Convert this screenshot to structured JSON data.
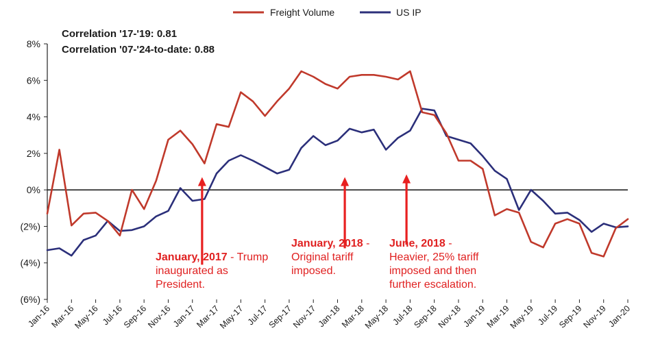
{
  "chart_data": {
    "type": "line",
    "title": "",
    "xlabel": "",
    "ylabel": "",
    "ylim": [
      -6,
      8
    ],
    "yticks": [
      8,
      6,
      4,
      2,
      0,
      -2,
      -4,
      -6
    ],
    "ytick_labels": [
      "8%",
      "6%",
      "4%",
      "2%",
      "0%",
      "(2%)",
      "(4%)",
      "(6%)"
    ],
    "x_tick_labels": [
      "Jan-16",
      "Mar-16",
      "May-16",
      "Jul-16",
      "Sep-16",
      "Nov-16",
      "Jan-17",
      "Mar-17",
      "May-17",
      "Jul-17",
      "Sep-17",
      "Nov-17",
      "Jan-18",
      "Mar-18",
      "May-18",
      "Jul-18",
      "Sep-18",
      "Nov-18",
      "Jan-19",
      "Mar-19",
      "May-19",
      "Jul-19",
      "Sep-19",
      "Nov-19",
      "Jan-20"
    ],
    "series": [
      {
        "name": "Freight Volume",
        "color": "#c0392b",
        "values": [
          -1.3,
          2.2,
          -1.95,
          -1.3,
          -1.25,
          -1.7,
          -2.5,
          0.0,
          -1.05,
          0.5,
          2.75,
          3.25,
          2.5,
          1.45,
          3.6,
          3.45,
          5.35,
          4.85,
          4.05,
          4.85,
          5.55,
          6.5,
          6.2,
          5.8,
          5.55,
          6.2,
          6.3,
          6.3,
          6.2,
          6.05,
          6.5,
          4.25,
          4.1,
          3.1,
          1.6,
          1.6,
          1.15,
          -1.4,
          -1.05,
          -1.25,
          -2.85,
          -3.15,
          -1.85,
          -1.6,
          -1.85,
          -3.45,
          -3.65,
          -2.1,
          -1.6
        ]
      },
      {
        "name": "US IP",
        "color": "#2b2f7a",
        "values": [
          -3.3,
          -3.2,
          -3.6,
          -2.75,
          -2.5,
          -1.7,
          -2.25,
          -2.2,
          -2.0,
          -1.45,
          -1.15,
          0.1,
          -0.6,
          -0.5,
          0.9,
          1.6,
          1.9,
          1.6,
          1.25,
          0.9,
          1.1,
          2.3,
          2.95,
          2.45,
          2.7,
          3.35,
          3.15,
          3.3,
          2.2,
          2.85,
          3.25,
          4.45,
          4.35,
          2.95,
          2.75,
          2.55,
          1.85,
          1.05,
          0.6,
          -1.1,
          0.0,
          -0.6,
          -1.3,
          -1.25,
          -1.65,
          -2.3,
          -1.85,
          -2.05,
          -2.0
        ]
      }
    ],
    "annotations": [
      {
        "text": "Correlation '17-'19: 0.81"
      },
      {
        "text": "Correlation '07-'24-to-date: 0.88"
      }
    ],
    "arrows": [
      {
        "label": "Trump inaugurated",
        "index": 12.8,
        "tip": 0.7,
        "tail": -4.1
      },
      {
        "label": "Original tariff",
        "index": 24.6,
        "tip": 0.7,
        "tail": -3.2
      },
      {
        "label": "25% tariff",
        "index": 29.7,
        "tip": 0.85,
        "tail": -3.0
      }
    ],
    "notes": [
      {
        "date": "January, 2017",
        "text": " - Trump inaugurated as President."
      },
      {
        "date": "January, 2018",
        "text": " - Original tariff imposed."
      },
      {
        "date": "June, 2018",
        "text": " - Heavier, 25% tariff imposed and then further escalation."
      }
    ],
    "legend_position": "top-center",
    "arrow_color": "#e82020"
  }
}
